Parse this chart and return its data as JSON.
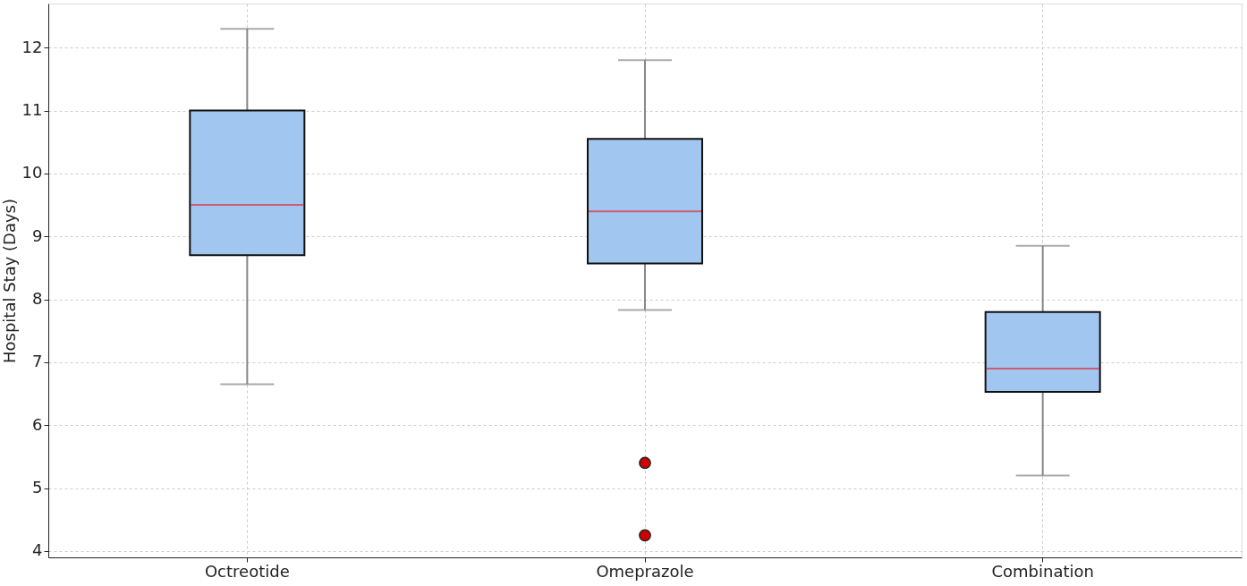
{
  "chart_data": {
    "type": "box",
    "ylabel": "Hospital Stay (Days)",
    "categories": [
      "Octreotide",
      "Omeprazole",
      "Combination"
    ],
    "series": [
      {
        "color": "#a1c6f0",
        "boxes": [
          {
            "low": 6.65,
            "q1": 8.7,
            "median": 9.5,
            "q3": 11.0,
            "high": 12.3
          },
          {
            "low": 7.83,
            "q1": 8.57,
            "median": 9.4,
            "q3": 10.55,
            "high": 11.8,
            "outliers": [
              5.4,
              4.25
            ]
          },
          {
            "low": 5.2,
            "q1": 6.53,
            "median": 6.9,
            "q3": 7.8,
            "high": 8.85
          }
        ]
      }
    ],
    "ylim": [
      3.9,
      12.7
    ],
    "yticks": [
      4,
      5,
      6,
      7,
      8,
      9,
      10,
      11,
      12
    ],
    "grid": true
  }
}
